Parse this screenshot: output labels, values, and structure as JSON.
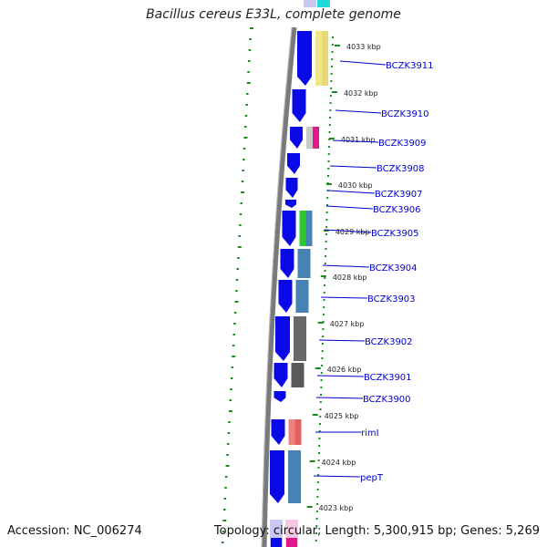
{
  "title": "Bacillus cereus E33L, complete genome",
  "footer": {
    "accession": "Accession: NC_006274",
    "summary": "Topology: circular; Length: 5,300,915 bp; Genes: 5,269"
  },
  "colors": {
    "gene_arrow": "#0a0ae6",
    "label": "#0000cc",
    "tick": "#1a8c1a",
    "backbone": "#7a7a7a"
  },
  "kbp_ticks": [
    "4033 kbp",
    "4032 kbp",
    "4031 kbp",
    "4030 kbp",
    "4029 kbp",
    "4028 kbp",
    "4027 kbp",
    "4026 kbp",
    "4025 kbp",
    "4024 kbp",
    "4023 kbp"
  ],
  "genes": [
    {
      "label": "BCZK3911"
    },
    {
      "label": "BCZK3910"
    },
    {
      "label": "BCZK3909"
    },
    {
      "label": "BCZK3908"
    },
    {
      "label": "BCZK3907"
    },
    {
      "label": "BCZK3906"
    },
    {
      "label": "BCZK3905"
    },
    {
      "label": "BCZK3904"
    },
    {
      "label": "BCZK3903"
    },
    {
      "label": "BCZK3902"
    },
    {
      "label": "BCZK3901"
    },
    {
      "label": "BCZK3900"
    },
    {
      "label": "rimI"
    },
    {
      "label": "pepT"
    }
  ]
}
